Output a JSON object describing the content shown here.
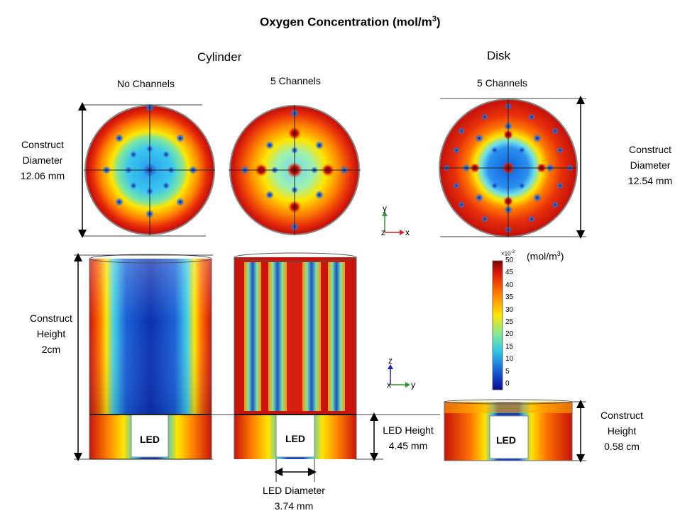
{
  "title": {
    "text": "Oxygen Concentration (mol/m",
    "sup": "3",
    "close": ")"
  },
  "headers": {
    "cylinder": "Cylinder",
    "disk": "Disk"
  },
  "subheaders": {
    "no_channels": "No Channels",
    "five_channels_cyl": "5 Channels",
    "five_channels_disk": "5 Channels"
  },
  "annotations": {
    "cyl_diameter": [
      "Construct",
      "Diameter",
      "12.06 mm"
    ],
    "disk_diameter": [
      "Construct",
      "Diameter",
      "12.54 mm"
    ],
    "cyl_height": [
      "Construct",
      "Height",
      "2cm"
    ],
    "led_height": [
      "LED Height",
      "4.45 mm"
    ],
    "led_diameter": [
      "LED Diameter",
      "3.74 mm"
    ],
    "disk_height": [
      "Construct",
      "Height",
      "0.58 cm"
    ]
  },
  "led_label": "LED",
  "axes_top": {
    "y": "y",
    "x": "x",
    "z": "z"
  },
  "axes_side": {
    "z": "z",
    "y": "y",
    "x": "x"
  },
  "colorbar": {
    "scale": "×10",
    "scale_exp": "-3",
    "unit": "(mol/m",
    "unit_sup": "3",
    "unit_close": ")",
    "ticks": [
      "50",
      "45",
      "40",
      "35",
      "30",
      "25",
      "20",
      "15",
      "10",
      "5",
      "0"
    ]
  },
  "colors": {
    "high": "#c0140a",
    "mid": "#ffd400",
    "low": "#1030c8"
  }
}
